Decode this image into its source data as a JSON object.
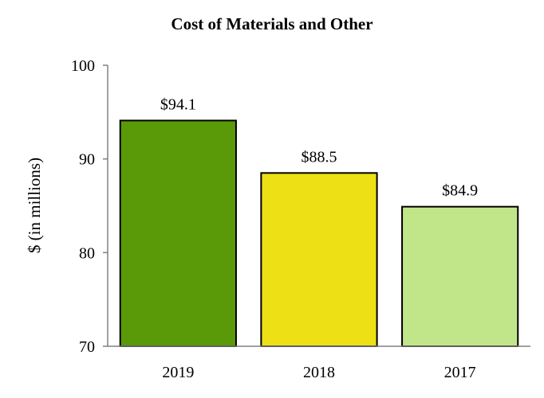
{
  "chart_data": {
    "type": "bar",
    "title": "Cost of Materials and Other",
    "xlabel": "",
    "ylabel": "$ (in millions)",
    "categories": [
      "2019",
      "2018",
      "2017"
    ],
    "values": [
      94.1,
      88.5,
      84.9
    ],
    "data_labels": [
      "$94.1",
      "$88.5",
      "$84.9"
    ],
    "colors": [
      "#5a9a08",
      "#ede015",
      "#c1e68a"
    ],
    "ylim": [
      70,
      100
    ],
    "yticks": [
      70,
      80,
      90,
      100
    ],
    "ytick_labels": [
      "70",
      "80",
      "90",
      "100"
    ],
    "grid": false,
    "legend": "none"
  }
}
